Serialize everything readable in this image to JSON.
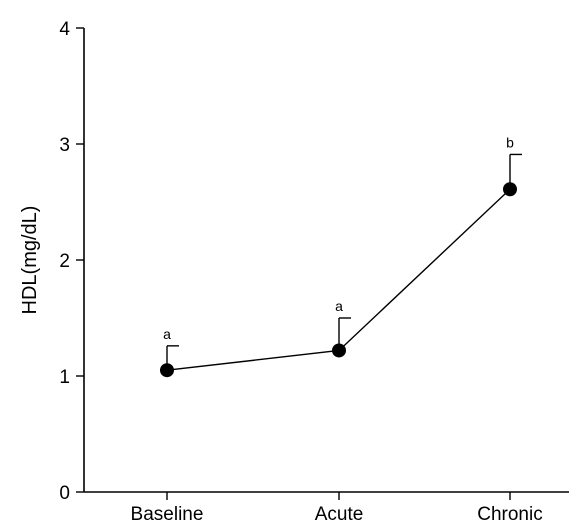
{
  "chart_data": {
    "type": "line",
    "title": "",
    "xlabel": "",
    "ylabel": "HDL(mg/dL)",
    "categories": [
      "Baseline",
      "Acute",
      "Chronic"
    ],
    "ylim": [
      0,
      4
    ],
    "yticks": [
      0,
      1,
      2,
      3,
      4
    ],
    "series": [
      {
        "values": [
          1.05,
          1.22,
          2.61
        ],
        "error_upper": [
          0.21,
          0.28,
          0.3
        ],
        "significance_labels": [
          "a",
          "a",
          "b"
        ]
      }
    ],
    "grid": false,
    "legend": "none",
    "colors": {
      "marker": "#000000",
      "line": "#000000",
      "background": "#ffffff"
    }
  }
}
